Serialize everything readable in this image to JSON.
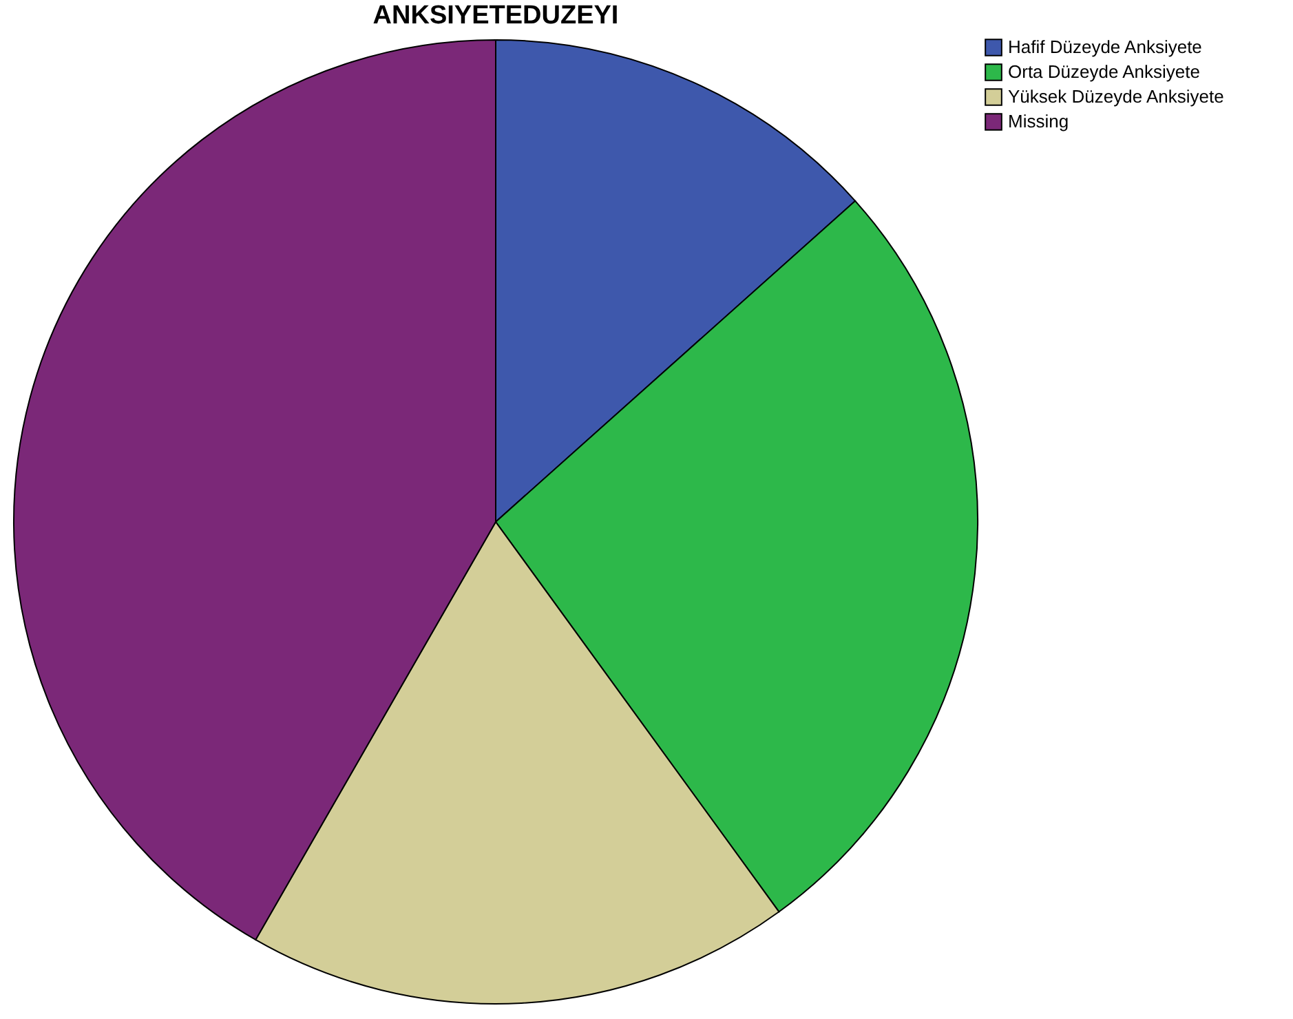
{
  "chart_data": {
    "type": "pie",
    "title": "ANKSIYETEDUZEYI",
    "categories": [
      "Hafif Düzeyde Anksiyete",
      "Orta Düzeyde Anksiyete",
      "Yüksek Düzeyde Anksiyete",
      "Missing"
    ],
    "values": [
      13.4,
      26.6,
      18.3,
      41.7
    ],
    "colors": [
      "#3e58ac",
      "#2db84a",
      "#d3ce98",
      "#7b2878"
    ],
    "legend": "top right"
  }
}
